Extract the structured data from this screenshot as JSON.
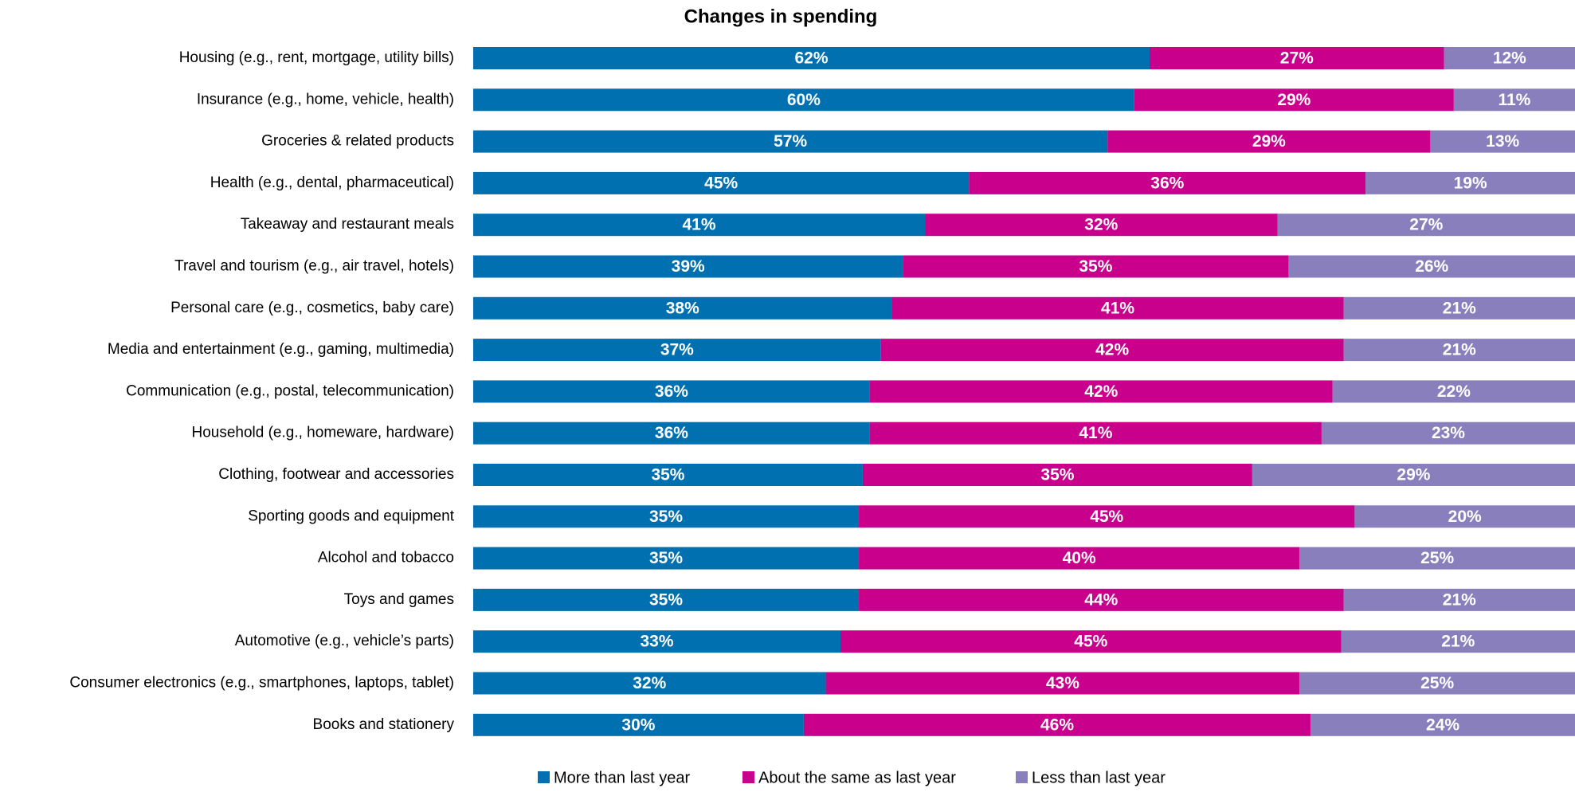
{
  "chart_data": {
    "type": "bar",
    "orientation": "horizontal",
    "stack": "percent",
    "title": "Changes in spending",
    "categories": [
      "Housing (e.g., rent, mortgage, utility bills)",
      "Insurance (e.g., home, vehicle, health)",
      "Groceries & related products",
      "Health (e.g., dental, pharmaceutical)",
      "Takeaway and restaurant meals",
      "Travel and tourism (e.g., air travel, hotels)",
      "Personal care (e.g., cosmetics, baby care)",
      "Media and entertainment (e.g., gaming, multimedia)",
      "Communication (e.g., postal, telecommunication)",
      "Household (e.g., homeware, hardware)",
      "Clothing, footwear and accessories",
      "Sporting goods and equipment",
      "Alcohol and tobacco",
      "Toys and games",
      "Automotive (e.g., vehicle’s parts)",
      "Consumer electronics (e.g., smartphones, laptops, tablet)",
      "Books and stationery"
    ],
    "series": [
      {
        "name": "More than last year",
        "color": "#0070b0",
        "values": [
          62,
          60,
          57,
          45,
          41,
          39,
          38,
          37,
          36,
          36,
          35,
          35,
          35,
          35,
          33,
          32,
          30
        ],
        "value_labels": [
          "62%",
          "60%",
          "57%",
          "45%",
          "41%",
          "39%",
          "38%",
          "37%",
          "36%",
          "36%",
          "35%",
          "35%",
          "35%",
          "35%",
          "33%",
          "32%",
          "30%"
        ]
      },
      {
        "name": "About the same as last year",
        "color": "#c8008c",
        "values": [
          27,
          29,
          29,
          36,
          32,
          35,
          41,
          42,
          42,
          41,
          35,
          45,
          40,
          44,
          45,
          43,
          46
        ],
        "value_labels": [
          "27%",
          "29%",
          "29%",
          "36%",
          "32%",
          "35%",
          "41%",
          "42%",
          "42%",
          "41%",
          "35%",
          "45%",
          "40%",
          "44%",
          "45%",
          "43%",
          "46%"
        ]
      },
      {
        "name": "Less than last year",
        "color": "#8a7fbd",
        "values": [
          12,
          11,
          13,
          19,
          27,
          26,
          21,
          21,
          22,
          23,
          29,
          20,
          25,
          21,
          21,
          25,
          24
        ],
        "value_labels": [
          "12%",
          "11%",
          "13%",
          "19%",
          "27%",
          "26%",
          "21%",
          "21%",
          "22%",
          "23%",
          "29%",
          "20%",
          "25%",
          "21%",
          "21%",
          "25%",
          "24%"
        ]
      }
    ],
    "legend": "bottom"
  }
}
